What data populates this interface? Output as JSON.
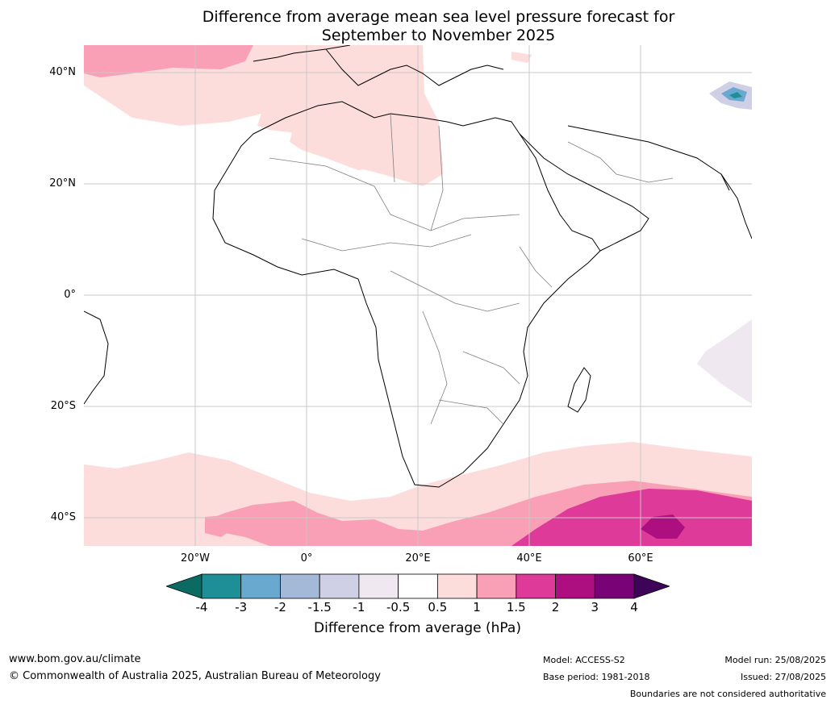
{
  "title": {
    "line1": "Difference from average mean sea level pressure forecast for",
    "line2": "September to November 2025"
  },
  "map": {
    "lat_labels": [
      "40°N",
      "20°N",
      "0°",
      "20°S",
      "40°S"
    ],
    "lon_labels": [
      "20°W",
      "0°",
      "20°E",
      "40°E",
      "60°E"
    ]
  },
  "colorbar": {
    "ticks": [
      "-4",
      "-3",
      "-2",
      "-1.5",
      "-1",
      "-0.5",
      "0.5",
      "1",
      "1.5",
      "2",
      "3",
      "4"
    ],
    "colors": [
      "#0b6b63",
      "#1f8f97",
      "#6aa9cf",
      "#a4b8d8",
      "#cfcfe6",
      "#efe8f0",
      "#ffffff",
      "#fddcdc",
      "#f99fb6",
      "#dd3a9a",
      "#ad0f80",
      "#7a0277",
      "#3e0458"
    ],
    "label": "Difference from average (hPa)"
  },
  "footer": {
    "url": "www.bom.gov.au/climate",
    "copyright": "© Commonwealth of Australia 2025, Australian Bureau of Meteorology",
    "model": "Model: ACCESS-S2",
    "base_period": "Base period: 1981-2018",
    "model_run": "Model run: 25/08/2025",
    "issued": "Issued: 27/08/2025",
    "disclaimer": "Boundaries are not considered authoritative"
  }
}
